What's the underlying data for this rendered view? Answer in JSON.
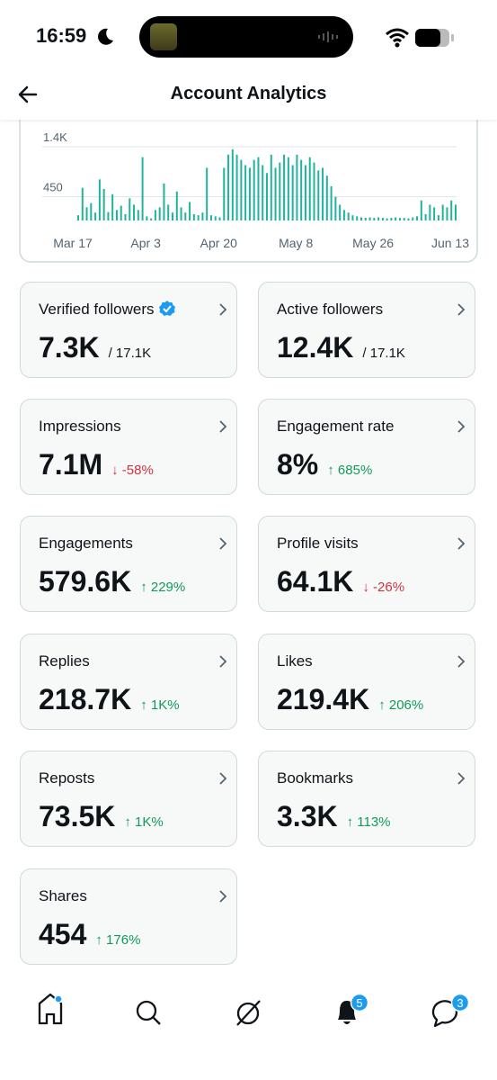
{
  "status_bar": {
    "time": "16:59"
  },
  "header": {
    "title": "Account Analytics"
  },
  "chart": {
    "type": "bar",
    "color": "#21b39b",
    "categories": [
      "Mar 17",
      null,
      null,
      null,
      null,
      null,
      null,
      null,
      null,
      null,
      null,
      null,
      null,
      null,
      null,
      null,
      null,
      "Apr 3",
      null,
      null,
      null,
      null,
      null,
      null,
      null,
      null,
      null,
      null,
      null,
      null,
      null,
      null,
      null,
      null,
      "Apr 20",
      null,
      null,
      null,
      null,
      null,
      null,
      null,
      null,
      null,
      null,
      null,
      null,
      null,
      null,
      null,
      null,
      null,
      "May 8",
      null,
      null,
      null,
      null,
      null,
      null,
      null,
      null,
      null,
      null,
      null,
      null,
      null,
      null,
      null,
      null,
      null,
      "May 26",
      null,
      null,
      null,
      null,
      null,
      null,
      null,
      null,
      null,
      null,
      null,
      null,
      null,
      null,
      null,
      null,
      null,
      "Jun 13"
    ],
    "values": [
      100,
      620,
      250,
      330,
      150,
      780,
      600,
      160,
      500,
      200,
      280,
      120,
      420,
      300,
      200,
      1200,
      80,
      40,
      200,
      250,
      700,
      300,
      150,
      550,
      250,
      150,
      350,
      120,
      100,
      150,
      1000,
      100,
      80,
      60,
      1000,
      1250,
      1350,
      1250,
      1150,
      1050,
      1000,
      1150,
      1200,
      1050,
      900,
      1250,
      1000,
      1100,
      1250,
      1200,
      1050,
      1250,
      1150,
      1050,
      1200,
      1100,
      950,
      1000,
      850,
      650,
      450,
      300,
      200,
      150,
      100,
      80,
      60,
      50,
      60,
      50,
      60,
      50,
      40,
      50,
      60,
      50,
      50,
      40,
      60,
      80,
      380,
      120,
      300,
      250,
      100,
      300,
      250,
      380,
      300
    ],
    "ylim": [
      0,
      1600
    ],
    "yticks": [
      450,
      {
        "value": 1400,
        "label": "1.4K"
      }
    ],
    "grid": true
  },
  "cards": [
    {
      "label": "Verified followers",
      "value": "7.3K",
      "total": "/ 17.1K",
      "verified": true
    },
    {
      "label": "Active followers",
      "value": "12.4K",
      "total": "/ 17.1K"
    },
    {
      "label": "Impressions",
      "value": "7.1M",
      "change": "↓ -58%",
      "color": "#d0313d"
    },
    {
      "label": "Engagement rate",
      "value": "8%",
      "change": "↑ 685%",
      "color": "#12995c"
    },
    {
      "label": "Engagements",
      "value": "579.6K",
      "change": "↑ 229%",
      "color": "#12995c"
    },
    {
      "label": "Profile visits",
      "value": "64.1K",
      "change": "↓ -26%",
      "color": "#d0313d"
    },
    {
      "label": "Replies",
      "value": "218.7K",
      "change": "↑ 1K%",
      "color": "#12995c"
    },
    {
      "label": "Likes",
      "value": "219.4K",
      "change": "↑ 206%",
      "color": "#12995c"
    },
    {
      "label": "Reposts",
      "value": "73.5K",
      "change": "↑ 1K%",
      "color": "#12995c"
    },
    {
      "label": "Bookmarks",
      "value": "3.3K",
      "change": "↑ 113%",
      "color": "#12995c"
    },
    {
      "label": "Shares",
      "value": "454",
      "change": "↑ 176%",
      "color": "#12995c"
    }
  ],
  "tab_bar": {
    "notifications_badge": "5",
    "messages_badge": "3"
  }
}
